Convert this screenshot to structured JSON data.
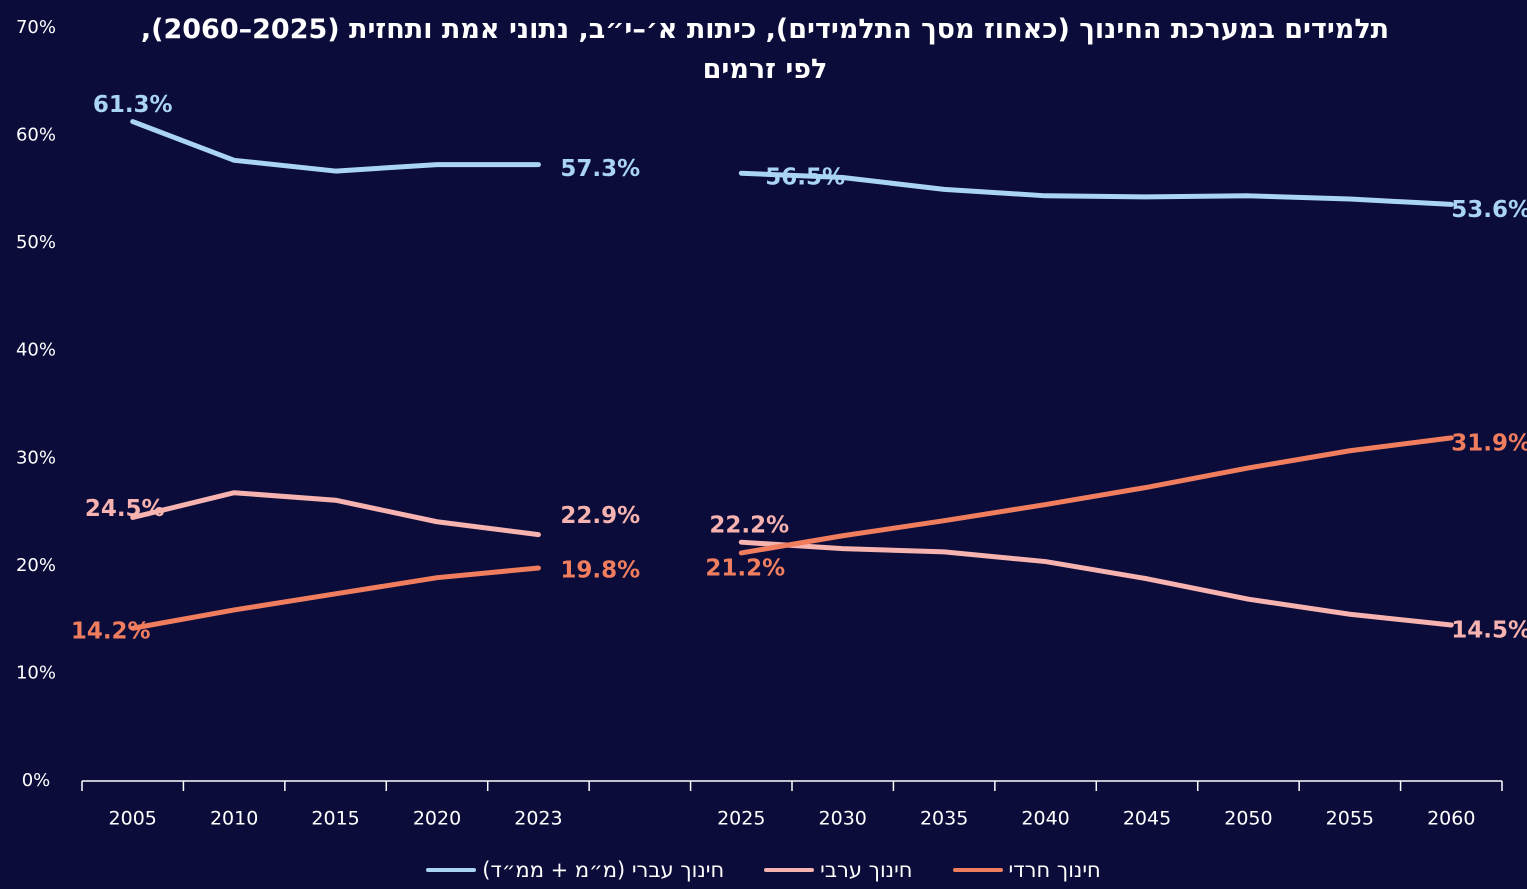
{
  "chart_data": {
    "type": "line",
    "title": "תלמידים במערכת החינוך (כאחוז מסך התלמידים), כיתות א׳–י״ב, נתוני אמת ותחזית (2025–2060), לפי זרמים",
    "categories": [
      "2005",
      "2010",
      "2015",
      "2020",
      "2023",
      null,
      "2025",
      "2030",
      "2035",
      "2040",
      "2045",
      "2050",
      "2055",
      "2060"
    ],
    "ylim": [
      0,
      70
    ],
    "yticks": [
      {
        "value": 0,
        "label": "0%"
      },
      {
        "value": 10,
        "label": "10%"
      },
      {
        "value": 20,
        "label": "20%"
      },
      {
        "value": 30,
        "label": "30%"
      },
      {
        "value": 40,
        "label": "40%"
      },
      {
        "value": 50,
        "label": "50%"
      },
      {
        "value": 60,
        "label": "60%"
      },
      {
        "value": 70,
        "label": "70%"
      }
    ],
    "series": [
      {
        "name": "חינוך עברי (מ״מ + ממ״ד)",
        "color": "#a9d4f5",
        "values": [
          61.3,
          57.7,
          56.7,
          57.3,
          57.3,
          null,
          56.5,
          56.1,
          55.0,
          54.4,
          54.3,
          54.4,
          54.1,
          53.6
        ],
        "value_labels": [
          "61.3%",
          null,
          null,
          null,
          "57.3%",
          null,
          "56.5%",
          null,
          null,
          null,
          null,
          null,
          null,
          "53.6%"
        ]
      },
      {
        "name": "חינוך ערבי",
        "color": "#f7b3b0",
        "values": [
          24.5,
          26.8,
          26.1,
          24.1,
          22.9,
          null,
          22.2,
          21.6,
          21.3,
          20.4,
          18.8,
          16.9,
          15.5,
          14.5
        ],
        "value_labels": [
          "24.5%",
          null,
          null,
          null,
          "22.9%",
          null,
          "22.2%",
          null,
          null,
          null,
          null,
          null,
          null,
          "14.5%"
        ]
      },
      {
        "name": "חינוך חרדי",
        "color": "#f07e5e",
        "values": [
          14.2,
          15.9,
          17.4,
          18.9,
          19.8,
          null,
          21.2,
          22.8,
          24.2,
          25.7,
          27.3,
          29.1,
          30.7,
          31.9
        ],
        "value_labels": [
          "14.2%",
          null,
          null,
          null,
          "19.8%",
          null,
          "21.2%",
          null,
          null,
          null,
          null,
          null,
          null,
          "31.9%"
        ]
      }
    ]
  }
}
